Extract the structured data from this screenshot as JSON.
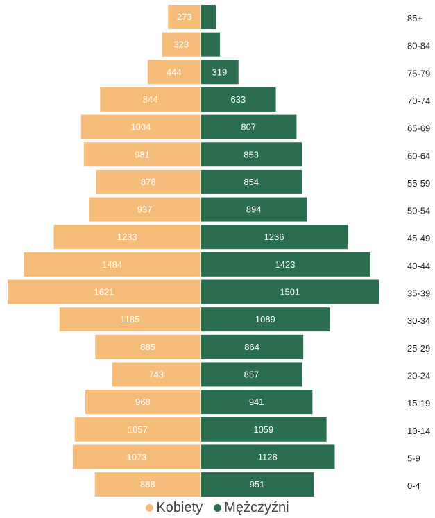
{
  "chart_data": {
    "type": "bar",
    "orientation": "horizontal-pyramid",
    "categories": [
      "85+",
      "80-84",
      "75-79",
      "70-74",
      "65-69",
      "60-64",
      "55-59",
      "50-54",
      "45-49",
      "40-44",
      "35-39",
      "30-34",
      "25-29",
      "20-24",
      "15-19",
      "10-14",
      "5-9",
      "0-4"
    ],
    "series": [
      {
        "name": "Kobiety",
        "side": "left",
        "color": "#f6bd7a",
        "values": [
          273,
          323,
          444,
          844,
          1004,
          981,
          878,
          937,
          1233,
          1484,
          1621,
          1185,
          885,
          743,
          968,
          1057,
          1073,
          888
        ]
      },
      {
        "name": "Mężczyźni",
        "side": "right",
        "color": "#2a6e4f",
        "values": [
          129,
          164,
          319,
          633,
          807,
          853,
          854,
          894,
          1236,
          1423,
          1501,
          1089,
          864,
          857,
          941,
          1059,
          1128,
          951
        ],
        "value_labels_shown": [
          false,
          false,
          true,
          true,
          true,
          true,
          true,
          true,
          true,
          true,
          true,
          true,
          true,
          true,
          true,
          true,
          true,
          true
        ]
      }
    ],
    "xlim": [
      -1621,
      1501
    ],
    "legend_position": "bottom",
    "grid": false
  }
}
